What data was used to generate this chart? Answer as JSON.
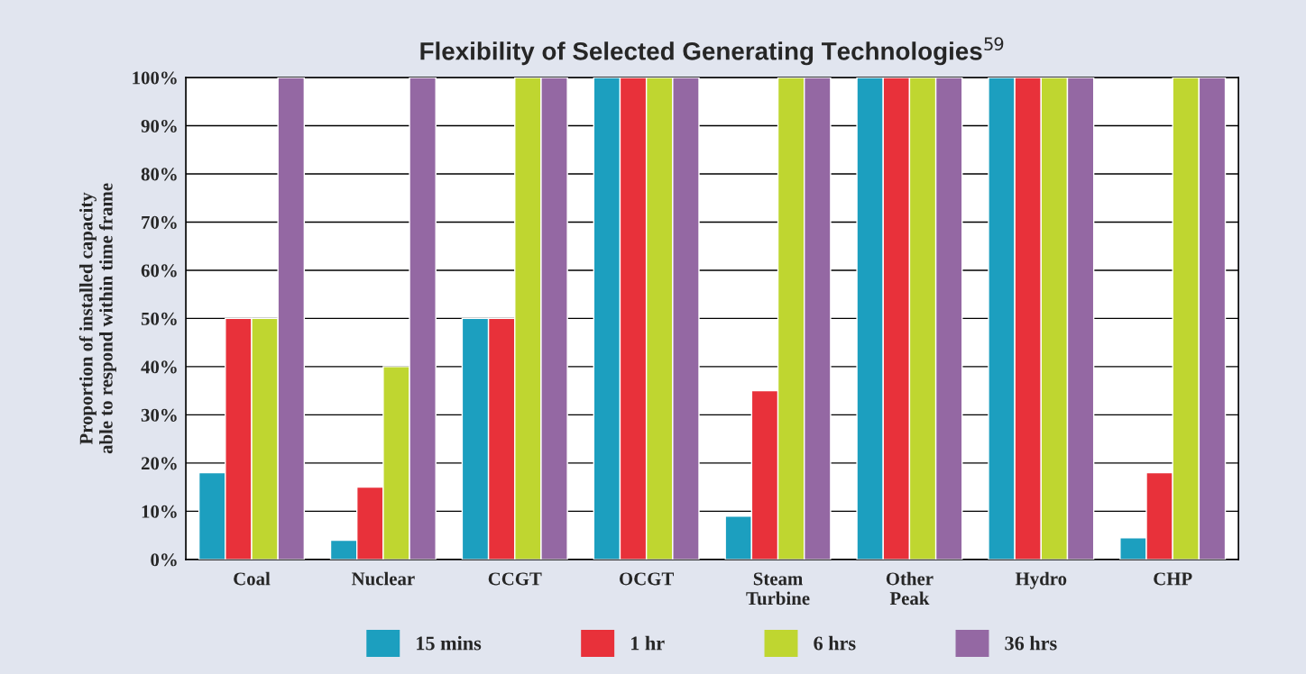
{
  "chart_data": {
    "type": "bar",
    "title": "Flexibility of Selected Generating Technologies$^{59}$",
    "ylabel": "Proportion of installed capacity\nable to respond within time frame",
    "categories": [
      "Coal",
      "Nuclear",
      "CCGT",
      "OCGT",
      "Steam\nTurbine",
      "Other\nPeak",
      "Hydro",
      "CHP"
    ],
    "series": [
      {
        "name": "15 mins",
        "color": "#1c9fbf",
        "values": [
          18,
          4,
          50,
          100,
          9,
          100,
          100,
          4.5
        ]
      },
      {
        "name": "1 hr",
        "color": "#e8313a",
        "values": [
          50,
          15,
          50,
          100,
          35,
          100,
          100,
          18
        ]
      },
      {
        "name": "6 hrs",
        "color": "#bfd630",
        "values": [
          50,
          40,
          100,
          100,
          100,
          100,
          100,
          100
        ]
      },
      {
        "name": "36 hrs",
        "color": "#9468a3",
        "values": [
          100,
          100,
          100,
          100,
          100,
          100,
          100,
          100
        ]
      }
    ],
    "ylim": [
      0,
      100
    ],
    "yticks": [
      {
        "value": 0,
        "label": "0%"
      },
      {
        "value": 10,
        "label": "10%"
      },
      {
        "value": 20,
        "label": "20%"
      },
      {
        "value": 30,
        "label": "30%"
      },
      {
        "value": 40,
        "label": "40%"
      },
      {
        "value": 50,
        "label": "50%"
      },
      {
        "value": 60,
        "label": "60%"
      },
      {
        "value": 70,
        "label": "70%"
      },
      {
        "value": 80,
        "label": "80%"
      },
      {
        "value": 90,
        "label": "90%"
      },
      {
        "value": 100,
        "label": "100%"
      }
    ],
    "grid": "y",
    "legend": "bottom"
  }
}
